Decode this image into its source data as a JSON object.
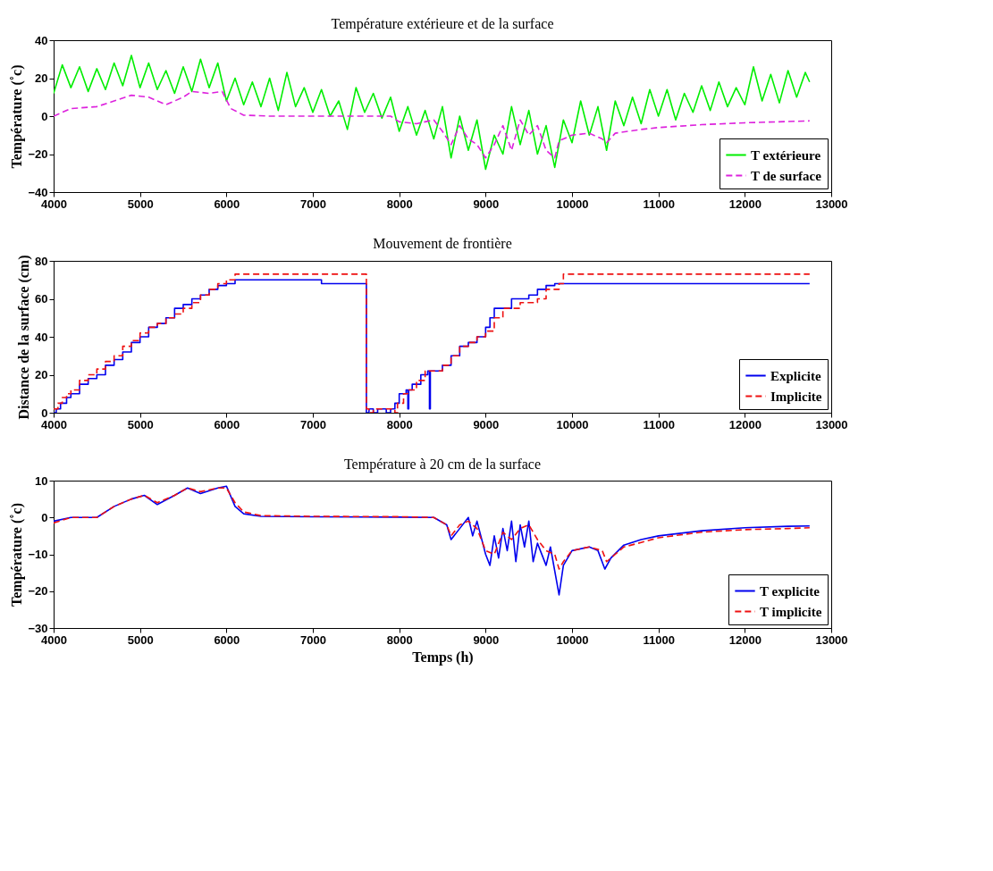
{
  "chart_data": [
    {
      "type": "line",
      "title": "Température extérieure et de la surface",
      "ylabel": "Température (˚c)",
      "xlim": [
        4000,
        13000
      ],
      "xticks": [
        4000,
        5000,
        6000,
        7000,
        8000,
        9000,
        10000,
        11000,
        12000,
        13000
      ],
      "ylim": [
        -40,
        40
      ],
      "yticks": [
        -40,
        -20,
        0,
        20,
        40
      ],
      "grid": false,
      "legend": "bottom right",
      "series": [
        {
          "name": "T extérieure",
          "color": "#00ee00",
          "line_style": "solid",
          "x": [
            4000,
            4100,
            4200,
            4300,
            4400,
            4500,
            4600,
            4700,
            4800,
            4900,
            5000,
            5100,
            5200,
            5300,
            5400,
            5500,
            5600,
            5700,
            5800,
            5900,
            6000,
            6100,
            6200,
            6300,
            6400,
            6500,
            6600,
            6700,
            6800,
            6900,
            7000,
            7100,
            7200,
            7300,
            7400,
            7500,
            7600,
            7700,
            7800,
            7900,
            8000,
            8100,
            8200,
            8300,
            8400,
            8500,
            8600,
            8700,
            8800,
            8900,
            9000,
            9100,
            9200,
            9300,
            9400,
            9500,
            9600,
            9700,
            9800,
            9900,
            10000,
            10100,
            10200,
            10300,
            10400,
            10500,
            10600,
            10700,
            10800,
            10900,
            11000,
            11100,
            11200,
            11300,
            11400,
            11500,
            11600,
            11700,
            11800,
            11900,
            12000,
            12100,
            12200,
            12300,
            12400,
            12500,
            12600,
            12700,
            12750
          ],
          "values": [
            12,
            27,
            15,
            26,
            13,
            25,
            14,
            28,
            16,
            32,
            15,
            28,
            14,
            24,
            12,
            26,
            13,
            30,
            15,
            28,
            8,
            20,
            6,
            18,
            5,
            20,
            3,
            23,
            5,
            15,
            2,
            14,
            0,
            8,
            -7,
            15,
            2,
            12,
            -1,
            10,
            -8,
            5,
            -10,
            3,
            -12,
            5,
            -22,
            0,
            -18,
            -2,
            -28,
            -10,
            -20,
            5,
            -15,
            3,
            -20,
            -5,
            -27,
            -2,
            -14,
            8,
            -10,
            5,
            -18,
            8,
            -5,
            10,
            -4,
            14,
            0,
            14,
            -2,
            12,
            2,
            16,
            3,
            18,
            5,
            15,
            6,
            26,
            8,
            22,
            7,
            24,
            10,
            23,
            18
          ]
        },
        {
          "name": "T de surface",
          "color": "#dd22dd",
          "line_style": "dashed",
          "x": [
            4000,
            4200,
            4500,
            4700,
            4900,
            5100,
            5300,
            5500,
            5600,
            5800,
            5950,
            6050,
            6200,
            6500,
            7000,
            7500,
            7900,
            8000,
            8200,
            8400,
            8500,
            8600,
            8700,
            8800,
            8900,
            9000,
            9100,
            9200,
            9300,
            9400,
            9500,
            9600,
            9700,
            9800,
            9850,
            10000,
            10200,
            10350,
            10400,
            10500,
            10800,
            11000,
            11500,
            12000,
            12750
          ],
          "values": [
            0,
            4,
            5,
            8,
            11,
            10,
            6,
            10,
            13,
            12,
            13,
            4,
            0.5,
            0,
            0,
            0,
            0,
            -3,
            -4,
            -2,
            -8,
            -15,
            -5,
            -12,
            -15,
            -22,
            -15,
            -5,
            -18,
            -2,
            -10,
            -5,
            -18,
            -22,
            -13,
            -10,
            -9,
            -12,
            -14,
            -9,
            -7,
            -6,
            -4.5,
            -3.5,
            -2.5
          ]
        }
      ]
    },
    {
      "type": "step",
      "title": "Mouvement de frontière",
      "ylabel": "Distance de la surface (cm)",
      "xlim": [
        4000,
        13000
      ],
      "xticks": [
        4000,
        5000,
        6000,
        7000,
        8000,
        9000,
        10000,
        11000,
        12000,
        13000
      ],
      "ylim": [
        0,
        80
      ],
      "yticks": [
        0,
        20,
        40,
        60,
        80
      ],
      "grid": false,
      "legend": "bottom right",
      "series": [
        {
          "name": "Explicite",
          "color": "#0000ee",
          "line_style": "solid",
          "x": [
            4000,
            4030,
            4080,
            4150,
            4200,
            4300,
            4400,
            4500,
            4600,
            4700,
            4800,
            4900,
            5000,
            5100,
            5200,
            5300,
            5400,
            5500,
            5600,
            5700,
            5800,
            5900,
            6000,
            6100,
            7100,
            7620,
            7650,
            7700,
            7750,
            7850,
            7900,
            7950,
            8000,
            8080,
            8100,
            8110,
            8150,
            8250,
            8330,
            8350,
            8360,
            8500,
            8600,
            8700,
            8800,
            8900,
            9000,
            9050,
            9100,
            9300,
            9500,
            9600,
            9700,
            9800,
            12750
          ],
          "values": [
            0,
            2,
            5,
            8,
            10,
            15,
            18,
            20,
            25,
            28,
            32,
            37,
            40,
            45,
            47,
            50,
            55,
            57,
            60,
            62,
            65,
            67,
            68,
            70,
            68,
            0,
            2,
            0,
            2,
            0,
            2,
            5,
            10,
            12,
            2,
            12,
            15,
            20,
            22,
            2,
            22,
            25,
            30,
            35,
            37,
            40,
            45,
            50,
            55,
            60,
            62,
            65,
            67,
            68,
            68
          ]
        },
        {
          "name": "Implicite",
          "color": "#ee1111",
          "line_style": "dashed",
          "x": [
            4000,
            4050,
            4100,
            4150,
            4200,
            4300,
            4400,
            4500,
            4600,
            4700,
            4800,
            4900,
            5000,
            5100,
            5200,
            5300,
            5400,
            5500,
            5600,
            5700,
            5800,
            5900,
            6000,
            6100,
            7620,
            7650,
            7700,
            7950,
            7980,
            8050,
            8100,
            8200,
            8300,
            8500,
            8600,
            8700,
            8800,
            8900,
            9000,
            9100,
            9200,
            9400,
            9600,
            9700,
            9850,
            9900,
            12750
          ],
          "values": [
            2,
            5,
            8,
            10,
            12,
            17,
            20,
            23,
            27,
            30,
            35,
            38,
            42,
            45,
            47,
            50,
            52,
            55,
            58,
            62,
            65,
            68,
            70,
            73,
            2,
            0,
            2,
            0,
            5,
            10,
            12,
            17,
            22,
            25,
            30,
            35,
            37,
            40,
            43,
            50,
            55,
            58,
            60,
            65,
            68,
            73,
            73
          ]
        }
      ]
    },
    {
      "type": "line",
      "title": "Température à 20 cm de la surface",
      "xlabel": "Temps (h)",
      "ylabel": "Température (˚c)",
      "xlim": [
        4000,
        13000
      ],
      "xticks": [
        4000,
        5000,
        6000,
        7000,
        8000,
        9000,
        10000,
        11000,
        12000,
        13000
      ],
      "ylim": [
        -30,
        10
      ],
      "yticks": [
        -30,
        -20,
        -10,
        0,
        10
      ],
      "grid": false,
      "legend": "bottom right",
      "series": [
        {
          "name": "T explicite",
          "color": "#0000ee",
          "line_style": "solid",
          "x": [
            4000,
            4200,
            4500,
            4700,
            4900,
            5050,
            5200,
            5400,
            5550,
            5700,
            5900,
            6000,
            6100,
            6200,
            6400,
            7000,
            8000,
            8400,
            8550,
            8600,
            8700,
            8800,
            8850,
            8900,
            9000,
            9050,
            9100,
            9150,
            9200,
            9250,
            9300,
            9350,
            9400,
            9450,
            9500,
            9550,
            9600,
            9700,
            9750,
            9850,
            9900,
            10000,
            10200,
            10300,
            10380,
            10450,
            10600,
            10800,
            11000,
            11500,
            12000,
            12500,
            12750
          ],
          "values": [
            -1,
            0,
            0,
            3,
            5,
            6,
            3.5,
            6,
            8,
            6.5,
            8,
            8.5,
            3,
            1,
            0.3,
            0.2,
            0.1,
            0,
            -2,
            -6,
            -3,
            0,
            -5,
            -1,
            -10,
            -13,
            -5,
            -11,
            -3,
            -9,
            -1,
            -12,
            -2,
            -8,
            -1,
            -12,
            -7,
            -13,
            -8,
            -21,
            -13,
            -9,
            -8,
            -9,
            -14,
            -11,
            -7.5,
            -6,
            -5,
            -3.6,
            -2.8,
            -2.4,
            -2.3
          ]
        },
        {
          "name": "T implicite",
          "color": "#ee1111",
          "line_style": "dashed",
          "x": [
            4000,
            4200,
            4500,
            4700,
            4900,
            5050,
            5200,
            5400,
            5550,
            5700,
            5900,
            6000,
            6100,
            6200,
            6400,
            7000,
            8000,
            8400,
            8550,
            8600,
            8700,
            8800,
            8900,
            9000,
            9100,
            9200,
            9300,
            9400,
            9500,
            9600,
            9700,
            9800,
            9850,
            9900,
            10000,
            10200,
            10350,
            10400,
            10500,
            10600,
            10800,
            11000,
            11500,
            12000,
            12500,
            12750
          ],
          "values": [
            -1.5,
            0,
            0,
            3,
            5,
            6,
            4,
            6,
            8,
            7,
            8,
            8,
            4,
            1.5,
            0.5,
            0.3,
            0.2,
            0,
            -2,
            -5,
            -2,
            -1,
            -3,
            -9,
            -10,
            -4,
            -6,
            -3,
            -2,
            -6,
            -9,
            -10,
            -14,
            -12,
            -9,
            -8,
            -9,
            -12,
            -10,
            -8,
            -6.8,
            -5.5,
            -4,
            -3.3,
            -3,
            -2.8
          ]
        }
      ]
    }
  ]
}
